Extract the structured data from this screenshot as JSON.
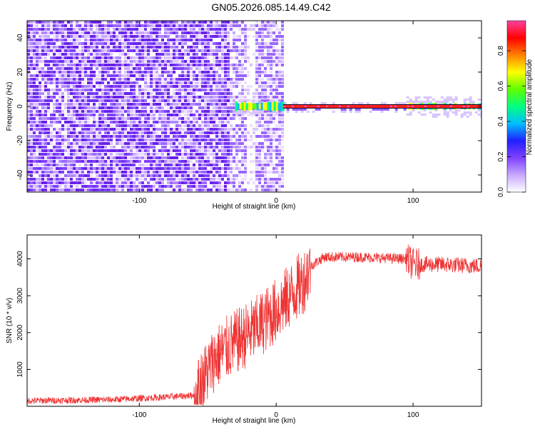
{
  "title": "GN05.2026.085.14.49.C42",
  "chart_data": [
    {
      "type": "heatmap",
      "xlabel": "Height of straight line (km)",
      "ylabel": "Frequency (Hz)",
      "xlim": [
        -182,
        150
      ],
      "ylim": [
        -50,
        50
      ],
      "x_ticks": [
        -100,
        0,
        100
      ],
      "y_ticks": [
        -40,
        -20,
        0,
        20,
        40
      ],
      "description_values": {
        "noise_region_x": [
          -182,
          4
        ],
        "gap_region_x": [
          -23,
          -16
        ],
        "signal_line_freq": 0,
        "signal_band_x": [
          -30,
          150
        ]
      },
      "colorbar": {
        "label": "Normalized spectral amplitude",
        "range": [
          0,
          1
        ],
        "ticks": [
          "0.0",
          "0.2",
          "0.4",
          "0.6",
          "0.8"
        ],
        "colors": [
          "#ffffff",
          "#c8a8ff",
          "#8040ff",
          "#2020ff",
          "#00c0ff",
          "#00ff80",
          "#60ff00",
          "#ffff00",
          "#ff8000",
          "#ff0000",
          "#ff40a0"
        ]
      }
    },
    {
      "type": "line",
      "xlabel": "Height of straight line (km)",
      "ylabel": "SNR (10 * v/v)",
      "xlim": [
        -182,
        150
      ],
      "ylim": [
        0,
        4650
      ],
      "x_ticks": [
        -100,
        0,
        100
      ],
      "y_ticks": [
        1000,
        2000,
        3000,
        4000
      ],
      "color": "#ee3333",
      "series_profile": [
        {
          "x": -182,
          "y": 150
        },
        {
          "x": -120,
          "y": 180
        },
        {
          "x": -80,
          "y": 250
        },
        {
          "x": -60,
          "y": 300
        },
        {
          "x": -45,
          "y": 1300
        },
        {
          "x": -35,
          "y": 1600
        },
        {
          "x": -25,
          "y": 1850
        },
        {
          "x": -15,
          "y": 2100
        },
        {
          "x": 0,
          "y": 2600
        },
        {
          "x": 10,
          "y": 3000
        },
        {
          "x": 20,
          "y": 3400
        },
        {
          "x": 25,
          "y": 3800
        },
        {
          "x": 35,
          "y": 4050
        },
        {
          "x": 60,
          "y": 4050
        },
        {
          "x": 95,
          "y": 4000
        },
        {
          "x": 100,
          "y": 3850
        },
        {
          "x": 120,
          "y": 3850
        },
        {
          "x": 150,
          "y": 3800
        }
      ]
    }
  ]
}
